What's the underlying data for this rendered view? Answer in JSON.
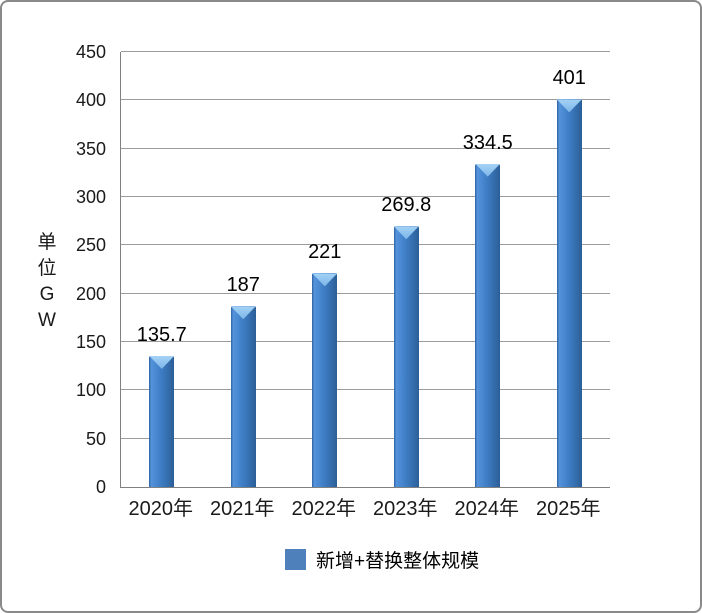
{
  "chart_data": {
    "type": "bar",
    "title": "",
    "categories": [
      "2020年",
      "2021年",
      "2022年",
      "2023年",
      "2024年",
      "2025年"
    ],
    "values": [
      135.7,
      187,
      221,
      269.8,
      334.5,
      401
    ],
    "xlabel": "",
    "ylabel": "单位GW",
    "ylabel_chars": [
      "单",
      "位",
      "G",
      "W"
    ],
    "ylim": [
      0,
      450
    ],
    "yticks": [
      0,
      50,
      100,
      150,
      200,
      250,
      300,
      350,
      400,
      450
    ],
    "grid": "horizontal",
    "legend": {
      "position": "bottom",
      "entries": [
        {
          "label": "新增+替换整体规模",
          "color": "#4e80bb"
        }
      ]
    },
    "colors": {
      "bar_main": "#3d7cc2",
      "bar_light": "#5593dc",
      "bar_dark": "#2b5e97",
      "bar_top_chevron": "#8fc3ee",
      "legend_marker": "#4e80bb",
      "gridline": "#9c9c9c",
      "axis_line": "#808080",
      "frame_border": "#8a8a8a",
      "label_text": "#000000"
    }
  }
}
